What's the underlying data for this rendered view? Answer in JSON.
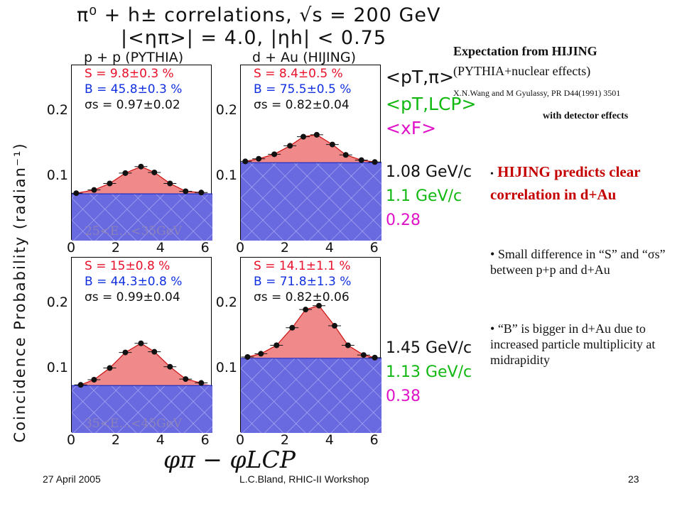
{
  "slide": {
    "title_line1": "π⁰ + h± correlations, √s = 200 GeV",
    "title_line2": "|<ηπ>| = 4.0, |ηh| < 0.75",
    "col_left_label": "p + p (PYTHIA)",
    "col_right_label": "d + Au (HIJING)",
    "ylabel": "Coincidence Probability (radian⁻¹)",
    "xlabel": "φπ − φLCP",
    "expectation_title": "Expectation from HIJING",
    "expectation_sub": "(PYTHIA+nuclear effects)",
    "reference": "X.N.Wang and M Gyulassy, PR D44(1991) 3501",
    "detector_note": "with detector effects",
    "legend_pt_pi": "<pT,π>",
    "legend_pt_lcp": "<pT,LCP>",
    "legend_xf": "<xF>",
    "row1_values": {
      "pt_pi": "1.08 GeV/c",
      "pt_lcp": "1.1 GeV/c",
      "xf": "0.28"
    },
    "row2_values": {
      "pt_pi": "1.45 GeV/c",
      "pt_lcp": "1.13 GeV/c",
      "xf": "0.38"
    },
    "bullets": [
      "HIJING predicts clear correlation in d+Au",
      "Small difference in “S” and “σs” between p+p and d+Au",
      "“B” is bigger in d+Au due to increased particle multiplicity at midrapidity"
    ],
    "footer_date": "27 April 2005",
    "footer_center": "L.C.Bland, RHIC-II Workshop",
    "footer_page": "23",
    "colors": {
      "signal_fill": "#f08a8a",
      "background_fill": "#6a6ae0",
      "curve": "#cc1010",
      "label_red": "#e8102a",
      "label_blue": "#1030e0"
    }
  },
  "chart_data": [
    {
      "type": "scatter",
      "panel": "p+p PYTHIA, 25<E<35GeV",
      "energy_range": "25<E…<35GeV",
      "S": "S = 9.8±0.3 %",
      "B": "B = 45.8±0.3 %",
      "sigma": "σs = 0.97±0.02",
      "baseline": 0.072,
      "x": [
        0.2,
        1.0,
        1.7,
        2.4,
        3.1,
        3.7,
        4.4,
        5.1,
        5.8
      ],
      "y": [
        0.073,
        0.078,
        0.088,
        0.104,
        0.114,
        0.105,
        0.088,
        0.076,
        0.074
      ],
      "xlim": [
        0,
        6.3
      ],
      "ylim": [
        0,
        0.27
      ],
      "xticks": [
        0,
        2,
        4,
        6
      ],
      "yticks": [
        0.1,
        0.2
      ]
    },
    {
      "type": "scatter",
      "panel": "d+Au HIJING, 25<E<35GeV",
      "S": "S = 8.4±0.5 %",
      "B": "B = 75.5±0.5 %",
      "sigma": "σs = 0.82±0.04",
      "baseline": 0.12,
      "x": [
        0.2,
        0.8,
        1.5,
        2.2,
        2.8,
        3.4,
        4.1,
        4.7,
        5.4,
        6.0
      ],
      "y": [
        0.122,
        0.126,
        0.133,
        0.146,
        0.16,
        0.163,
        0.148,
        0.132,
        0.124,
        0.121
      ],
      "xlim": [
        0,
        6.3
      ],
      "ylim": [
        0,
        0.27
      ],
      "xticks": [
        0,
        2,
        4,
        6
      ],
      "yticks": [
        0.1,
        0.2
      ]
    },
    {
      "type": "scatter",
      "panel": "p+p PYTHIA, 35<E<45GeV",
      "energy_range": "35<E…<45GeV",
      "S": "S = 15±0.8 %",
      "B": "B = 44.3±0.8 %",
      "sigma": "σs = 0.99±0.04",
      "baseline": 0.073,
      "x": [
        0.4,
        1.0,
        1.7,
        2.4,
        3.1,
        3.7,
        4.4,
        5.1,
        5.8
      ],
      "y": [
        0.074,
        0.082,
        0.1,
        0.124,
        0.138,
        0.125,
        0.102,
        0.083,
        0.077
      ],
      "xlim": [
        0,
        6.3
      ],
      "ylim": [
        0,
        0.27
      ],
      "xticks": [
        0,
        2,
        4,
        6
      ],
      "yticks": [
        0.1,
        0.2
      ]
    },
    {
      "type": "scatter",
      "panel": "d+Au HIJING, 35<E<45GeV",
      "S": "S = 14.1±1.1 %",
      "B": "B = 71.8±1.3 %",
      "sigma": "σs = 0.82±0.06",
      "baseline": 0.115,
      "x": [
        0.3,
        0.9,
        1.6,
        2.3,
        2.9,
        3.5,
        4.2,
        4.8,
        5.5,
        6.0
      ],
      "y": [
        0.117,
        0.122,
        0.135,
        0.162,
        0.19,
        0.196,
        0.165,
        0.135,
        0.12,
        0.116
      ],
      "xlim": [
        0,
        6.3
      ],
      "ylim": [
        0,
        0.27
      ],
      "xticks": [
        0,
        2,
        4,
        6
      ],
      "yticks": [
        0.1,
        0.2
      ]
    }
  ]
}
